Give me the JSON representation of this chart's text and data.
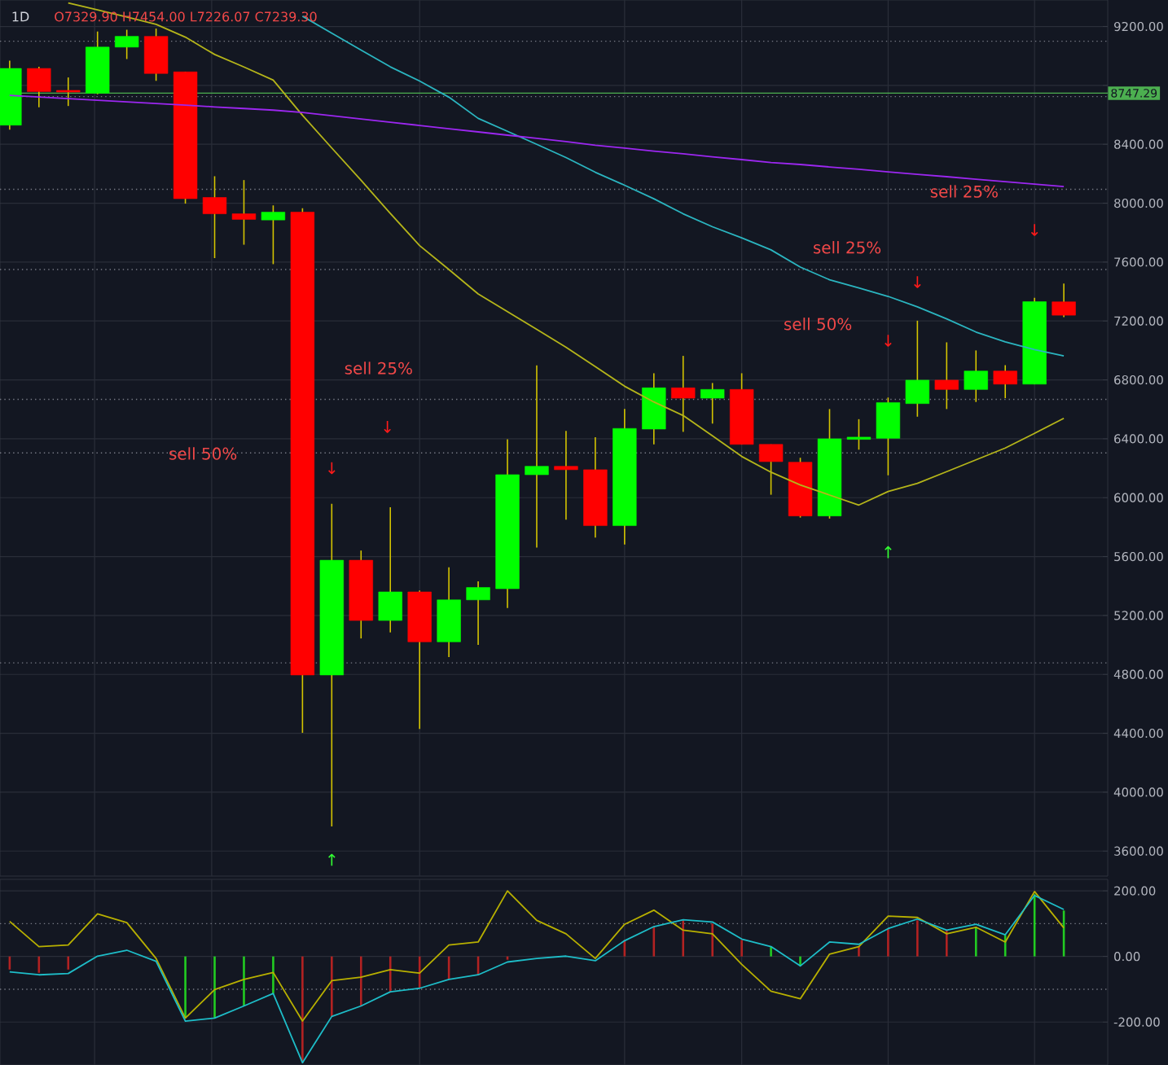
{
  "chart_data": [
    {
      "type": "candlestick",
      "title": "1D",
      "subtitle": "O7329.90 H7454.00 L7226.07 C7239.30",
      "categories": [
        null,
        null,
        null,
        null,
        null,
        null,
        null,
        null,
        null,
        null,
        null,
        null,
        null,
        null,
        null,
        null,
        null,
        null,
        null,
        null,
        null,
        null,
        null,
        null,
        null,
        null,
        null,
        null,
        null,
        null,
        null,
        null,
        null,
        null,
        null,
        null,
        null
      ],
      "ohlc": [
        [
          8530,
          8968,
          8500,
          8915
        ],
        [
          8915,
          8926,
          8652,
          8758
        ],
        [
          8766,
          8854,
          8660,
          8755
        ],
        [
          8747,
          9166,
          8740,
          9060
        ],
        [
          9060,
          9178,
          8979,
          9133
        ],
        [
          9133,
          9186,
          8831,
          8881
        ],
        [
          8892,
          8892,
          7997,
          8031
        ],
        [
          8039,
          8183,
          7627,
          7928
        ],
        [
          7928,
          8157,
          7718,
          7890
        ],
        [
          7886,
          7985,
          7586,
          7939
        ],
        [
          7939,
          7966,
          4403,
          4796
        ],
        [
          4796,
          5958,
          3767,
          5575
        ],
        [
          5575,
          5641,
          5044,
          5166
        ],
        [
          5166,
          5935,
          5085,
          5360
        ],
        [
          5360,
          5370,
          4430,
          5021
        ],
        [
          5021,
          5527,
          4918,
          5306
        ],
        [
          5306,
          5432,
          5001,
          5390
        ],
        [
          5382,
          6396,
          5250,
          6156
        ],
        [
          6156,
          6899,
          5661,
          6213
        ],
        [
          6213,
          6453,
          5851,
          6190
        ],
        [
          6190,
          6411,
          5729,
          5810
        ],
        [
          5810,
          6602,
          5682,
          6470
        ],
        [
          6466,
          6845,
          6362,
          6746
        ],
        [
          6746,
          6963,
          6447,
          6676
        ],
        [
          6676,
          6779,
          6503,
          6735
        ],
        [
          6735,
          6845,
          6362,
          6362
        ],
        [
          6362,
          6362,
          6020,
          6245
        ],
        [
          6241,
          6271,
          5865,
          5876
        ],
        [
          5876,
          6602,
          5858,
          6400
        ],
        [
          6396,
          6533,
          6326,
          6411
        ],
        [
          6403,
          6680,
          6152,
          6646
        ],
        [
          6639,
          7202,
          6550,
          6798
        ],
        [
          6798,
          7055,
          6602,
          6735
        ],
        [
          6735,
          7000,
          6650,
          6860
        ],
        [
          6860,
          6900,
          6676,
          6771
        ],
        [
          6771,
          7357,
          6771,
          7331
        ],
        [
          7329.9,
          7454.0,
          7226.07,
          7239.3
        ]
      ],
      "colors": [
        "#00ff00",
        "#ff0000",
        "#ff0000",
        "#00ff00",
        "#00ff00",
        "#ff0000",
        "#ff0000",
        "#ff0000",
        "#ff0000",
        "#00ff00",
        "#ff0000",
        "#00ff00",
        "#ff0000",
        "#00ff00",
        "#ff0000",
        "#00ff00",
        "#00ff00",
        "#00ff00",
        "#00ff00",
        "#ff0000",
        "#ff0000",
        "#00ff00",
        "#00ff00",
        "#ff0000",
        "#00ff00",
        "#ff0000",
        "#ff0000",
        "#ff0000",
        "#00ff00",
        "#00ff00",
        "#00ff00",
        "#00ff00",
        "#ff0000",
        "#00ff00",
        "#ff0000",
        "#00ff00",
        "#ff0000"
      ],
      "series": [
        {
          "type": "line",
          "color": "#b5b51a",
          "values": [
            null,
            null,
            9360,
            9313,
            9264,
            9215,
            9128,
            9010,
            8925,
            8836,
            8597,
            8375,
            8156,
            7930,
            7712,
            7550,
            7384,
            7263,
            7143,
            7022,
            6890,
            6757,
            6650,
            6558,
            6420,
            6280,
            6173,
            6086,
            6018,
            5950,
            6042,
            6097,
            6177,
            6257,
            6337,
            6437,
            6539
          ]
        },
        {
          "type": "line",
          "color": "#2bb5c0",
          "values": [
            null,
            null,
            null,
            null,
            null,
            null,
            null,
            null,
            null,
            null,
            9270,
            9155,
            9040,
            8926,
            8830,
            8720,
            8576,
            8488,
            8400,
            8310,
            8210,
            8122,
            8030,
            7928,
            7840,
            7765,
            7683,
            7566,
            7480,
            7425,
            7367,
            7296,
            7214,
            7125,
            7058,
            7005,
            6963
          ]
        },
        {
          "type": "line",
          "color": "#9c27f0",
          "values": [
            8732,
            8721,
            8710,
            8699,
            8688,
            8677,
            8666,
            8654,
            8643,
            8632,
            8616,
            8594,
            8572,
            8550,
            8528,
            8506,
            8484,
            8462,
            8440,
            8418,
            8393,
            8374,
            8354,
            8335,
            8315,
            8296,
            8276,
            8263,
            8246,
            8230,
            8213,
            8196,
            8180,
            8163,
            8146,
            8130,
            8113
          ]
        }
      ],
      "ylim": [
        3430,
        9380
      ],
      "yticks": [
        {
          "value": 3600,
          "label": "3600.00"
        },
        {
          "value": 4000,
          "label": "4000.00"
        },
        {
          "value": 4400,
          "label": "4400.00"
        },
        {
          "value": 4800,
          "label": "4800.00"
        },
        {
          "value": 5200,
          "label": "5200.00"
        },
        {
          "value": 5600,
          "label": "5600.00"
        },
        {
          "value": 6000,
          "label": "6000.00"
        },
        {
          "value": 6400,
          "label": "6400.00"
        },
        {
          "value": 6800,
          "label": "6800.00"
        },
        {
          "value": 7200,
          "label": "7200.00"
        },
        {
          "value": 7600,
          "label": "7600.00"
        },
        {
          "value": 8000,
          "label": "8000.00"
        },
        {
          "value": 8400,
          "label": "8400.00"
        },
        {
          "value": 8800,
          "label": null
        },
        {
          "value": 9200,
          "label": "9200.00"
        }
      ],
      "grid": true,
      "ref_lines": [
        {
          "axis": "y",
          "value": 8747.29,
          "label": "8747.29",
          "color": "#4caf50",
          "line_style": "solid"
        },
        {
          "axis": "y",
          "value": 9100,
          "color": "#787b86",
          "line_style": "dotted"
        },
        {
          "axis": "y",
          "value": 8724,
          "color": "#787b86",
          "line_style": "dotted"
        },
        {
          "axis": "y",
          "value": 8094,
          "color": "#787b86",
          "line_style": "dotted"
        },
        {
          "axis": "y",
          "value": 7550,
          "color": "#787b86",
          "line_style": "dotted"
        },
        {
          "axis": "y",
          "value": 6668,
          "color": "#787b86",
          "line_style": "dotted"
        },
        {
          "axis": "y",
          "value": 6304,
          "color": "#787b86",
          "line_style": "dotted"
        },
        {
          "axis": "y",
          "value": 4878,
          "color": "#787b86",
          "line_style": "dotted"
        }
      ],
      "annotations": [
        "sell 50%",
        "sell 25%",
        "sell 50%",
        "sell 25%",
        "sell 25%",
        "↓",
        "↓",
        "↓",
        "↓",
        "↓",
        "↑",
        "↑"
      ]
    },
    {
      "type": "line",
      "categories": [
        null,
        null,
        null,
        null,
        null,
        null,
        null,
        null,
        null,
        null,
        null,
        null,
        null,
        null,
        null,
        null,
        null,
        null,
        null,
        null,
        null,
        null,
        null,
        null,
        null,
        null,
        null,
        null,
        null,
        null,
        null,
        null,
        null,
        null,
        null,
        null,
        null
      ],
      "series": [
        {
          "type": "bar",
          "colors": [
            "#b22222",
            "#b22222",
            "#b22222",
            null,
            null,
            null,
            "#22cc22",
            "#22cc22",
            "#22cc22",
            "#22cc22",
            "#b22222",
            "#b22222",
            "#b22222",
            "#b22222",
            "#b22222",
            "#b22222",
            "#b22222",
            "#b22222",
            null,
            null,
            null,
            "#b22222",
            "#b22222",
            "#b22222",
            "#b22222",
            "#b22222",
            "#22cc22",
            "#22cc22",
            null,
            "#b22222",
            "#b22222",
            "#b22222",
            "#b22222",
            "#22cc22",
            "#22cc22",
            "#22cc22",
            "#22cc22"
          ],
          "values": [
            -40,
            -50,
            -40,
            null,
            null,
            null,
            -188,
            -188,
            -151,
            -113,
            -324,
            -183,
            -151,
            -108,
            -97,
            -70,
            -56,
            -10,
            null,
            null,
            null,
            50,
            90,
            110,
            100,
            50,
            30,
            -29,
            null,
            30,
            85,
            110,
            80,
            90,
            65,
            190,
            140
          ]
        },
        {
          "type": "line",
          "color": "#b8b000",
          "values": [
            107,
            30,
            35,
            130,
            103,
            -6,
            -188,
            -101,
            -70,
            -49,
            -197,
            -74,
            -63,
            -40,
            -51,
            35,
            44,
            200,
            110,
            69,
            -6,
            98,
            141,
            80,
            69,
            -24,
            -106,
            -129,
            7,
            30,
            123,
            119,
            69,
            89,
            44,
            198,
            87
          ]
        },
        {
          "type": "line",
          "color": "#1ebdc8",
          "values": [
            -47,
            -56,
            -52,
            1,
            19,
            -15,
            -197,
            -188,
            -151,
            -113,
            -324,
            -183,
            -151,
            -108,
            -97,
            -70,
            -56,
            -17,
            -6,
            1,
            -13,
            48,
            91,
            112,
            105,
            53,
            30,
            -29,
            44,
            37,
            85,
            114,
            80,
            98,
            66,
            186,
            143
          ]
        }
      ],
      "ylim": [
        -331,
        235
      ],
      "yticks": [
        {
          "value": -200,
          "label": "-200.00"
        },
        {
          "value": 0,
          "label": "0.00"
        },
        {
          "value": 200,
          "label": "200.00"
        }
      ],
      "grid": true,
      "ref_lines": [
        {
          "axis": "y",
          "value": 100,
          "color": "#787b86",
          "line_style": "dotted"
        },
        {
          "axis": "y",
          "value": -100,
          "color": "#787b86",
          "line_style": "dotted"
        }
      ]
    }
  ]
}
